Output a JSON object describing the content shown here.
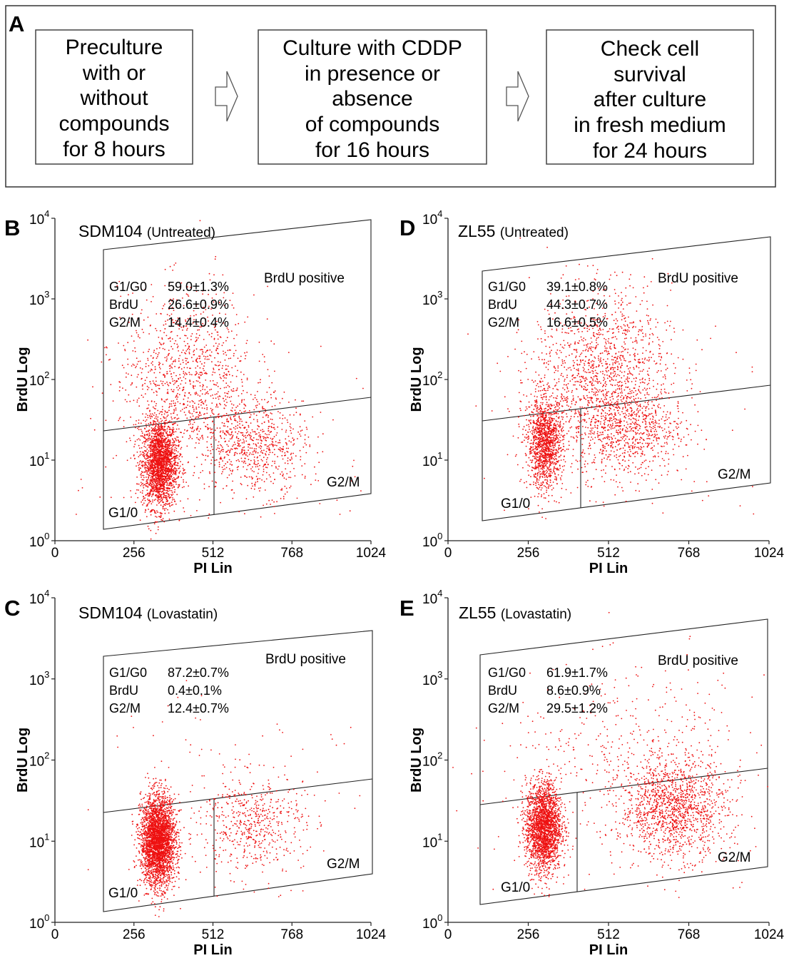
{
  "panel_a": {
    "letter": "A",
    "steps": [
      {
        "lines": [
          "Preculture",
          "with or",
          "without",
          "compounds",
          "for 8 hours"
        ]
      },
      {
        "lines": [
          "Culture with CDDP",
          "in presence or",
          "absence",
          "of compounds",
          "for 16 hours"
        ]
      },
      {
        "lines": [
          "Check cell",
          "survival",
          "after culture",
          "in fresh medium",
          "for 24 hours"
        ]
      }
    ]
  },
  "chart_data": [
    {
      "type": "scatter",
      "panel": "B",
      "title": "SDM104 (Untreated)",
      "xlabel": "PI Lin",
      "ylabel": "BrdU Log",
      "xlim": [
        0,
        1024
      ],
      "ylim": [
        1,
        10000
      ],
      "yscale": "log",
      "x_ticks": [
        "0",
        "256",
        "512",
        "768",
        "1024"
      ],
      "y_ticks": [
        {
          "base": "10",
          "exp": "0"
        },
        {
          "base": "10",
          "exp": "1"
        },
        {
          "base": "10",
          "exp": "2"
        },
        {
          "base": "10",
          "exp": "3"
        },
        {
          "base": "10",
          "exp": "4"
        }
      ],
      "gates": [
        "BrdU positive",
        "G1/0",
        "G2/M"
      ],
      "stats": [
        {
          "label": "G1/G0",
          "value": "59.0±1.3%"
        },
        {
          "label": "BrdU",
          "value": "26.6±0.9%"
        },
        {
          "label": "G2/M",
          "value": "14.4±0.4%"
        }
      ],
      "populations": [
        {
          "name": "G1/0",
          "x_center": 340,
          "y_center": 9,
          "count": 2200
        },
        {
          "name": "BrdU",
          "x_center": 430,
          "y_center": 100,
          "count": 1100
        },
        {
          "name": "G2/M",
          "x_center": 650,
          "y_center": 15,
          "count": 700
        }
      ]
    },
    {
      "type": "scatter",
      "panel": "D",
      "title": "ZL55 (Untreated)",
      "xlabel": "PI Lin",
      "ylabel": "BrdU Log",
      "xlim": [
        0,
        1024
      ],
      "ylim": [
        1,
        10000
      ],
      "yscale": "log",
      "x_ticks": [
        "0",
        "256",
        "512",
        "768",
        "1024"
      ],
      "y_ticks": [
        {
          "base": "10",
          "exp": "0"
        },
        {
          "base": "10",
          "exp": "1"
        },
        {
          "base": "10",
          "exp": "2"
        },
        {
          "base": "10",
          "exp": "3"
        },
        {
          "base": "10",
          "exp": "4"
        }
      ],
      "gates": [
        "BrdU positive",
        "G1/0",
        "G2/M"
      ],
      "stats": [
        {
          "label": "G1/G0",
          "value": "39.1±0.8%"
        },
        {
          "label": "BrdU",
          "value": "44.3±0.7%"
        },
        {
          "label": "G2/M",
          "value": "16.6±0.5%"
        }
      ],
      "populations": [
        {
          "name": "G1/0",
          "x_center": 310,
          "y_center": 16,
          "count": 1300
        },
        {
          "name": "BrdU",
          "x_center": 490,
          "y_center": 100,
          "count": 1500
        },
        {
          "name": "G2/M",
          "x_center": 585,
          "y_center": 24,
          "count": 600
        }
      ]
    },
    {
      "type": "scatter",
      "panel": "C",
      "title": "SDM104 (Lovastatin)",
      "xlabel": "PI Lin",
      "ylabel": "BrdU Log",
      "xlim": [
        0,
        1024
      ],
      "ylim": [
        1,
        10000
      ],
      "yscale": "log",
      "x_ticks": [
        "0",
        "256",
        "512",
        "768",
        "1024"
      ],
      "y_ticks": [
        {
          "base": "10",
          "exp": "0"
        },
        {
          "base": "10",
          "exp": "1"
        },
        {
          "base": "10",
          "exp": "2"
        },
        {
          "base": "10",
          "exp": "3"
        },
        {
          "base": "10",
          "exp": "4"
        }
      ],
      "gates": [
        "BrdU positive",
        "G1/0",
        "G2/M"
      ],
      "stats": [
        {
          "label": "G1/G0",
          "value": "87.2±0.7%"
        },
        {
          "label": "BrdU",
          "value": "0.4±0.1%"
        },
        {
          "label": "G2/M",
          "value": "12.4±0.7%"
        }
      ],
      "populations": [
        {
          "name": "G1/0",
          "x_center": 335,
          "y_center": 10,
          "count": 3000
        },
        {
          "name": "BrdU",
          "x_center": 420,
          "y_center": 150,
          "count": 12
        },
        {
          "name": "G2/M",
          "x_center": 640,
          "y_center": 17,
          "count": 550
        }
      ]
    },
    {
      "type": "scatter",
      "panel": "E",
      "title": "ZL55 (Lovastatin)",
      "xlabel": "PI Lin",
      "ylabel": "BrdU Log",
      "xlim": [
        0,
        1024
      ],
      "ylim": [
        1,
        10000
      ],
      "yscale": "log",
      "x_ticks": [
        "0",
        "256",
        "512",
        "768",
        "1024"
      ],
      "y_ticks": [
        {
          "base": "10",
          "exp": "0"
        },
        {
          "base": "10",
          "exp": "1"
        },
        {
          "base": "10",
          "exp": "2"
        },
        {
          "base": "10",
          "exp": "3"
        },
        {
          "base": "10",
          "exp": "4"
        }
      ],
      "gates": [
        "BrdU positive",
        "G1/0",
        "G2/M"
      ],
      "stats": [
        {
          "label": "G1/G0",
          "value": "61.9±1.7%"
        },
        {
          "label": "BrdU",
          "value": "8.6±0.9%"
        },
        {
          "label": "G2/M",
          "value": "29.5±1.2%"
        }
      ],
      "populations": [
        {
          "name": "G1/0",
          "x_center": 305,
          "y_center": 15,
          "count": 2200
        },
        {
          "name": "BrdU",
          "x_center": 600,
          "y_center": 100,
          "count": 450
        },
        {
          "name": "G2/M",
          "x_center": 720,
          "y_center": 25,
          "count": 1300
        }
      ]
    }
  ],
  "colors": {
    "dots": "#ee1111",
    "lines": "#222222",
    "text": "#000000"
  }
}
